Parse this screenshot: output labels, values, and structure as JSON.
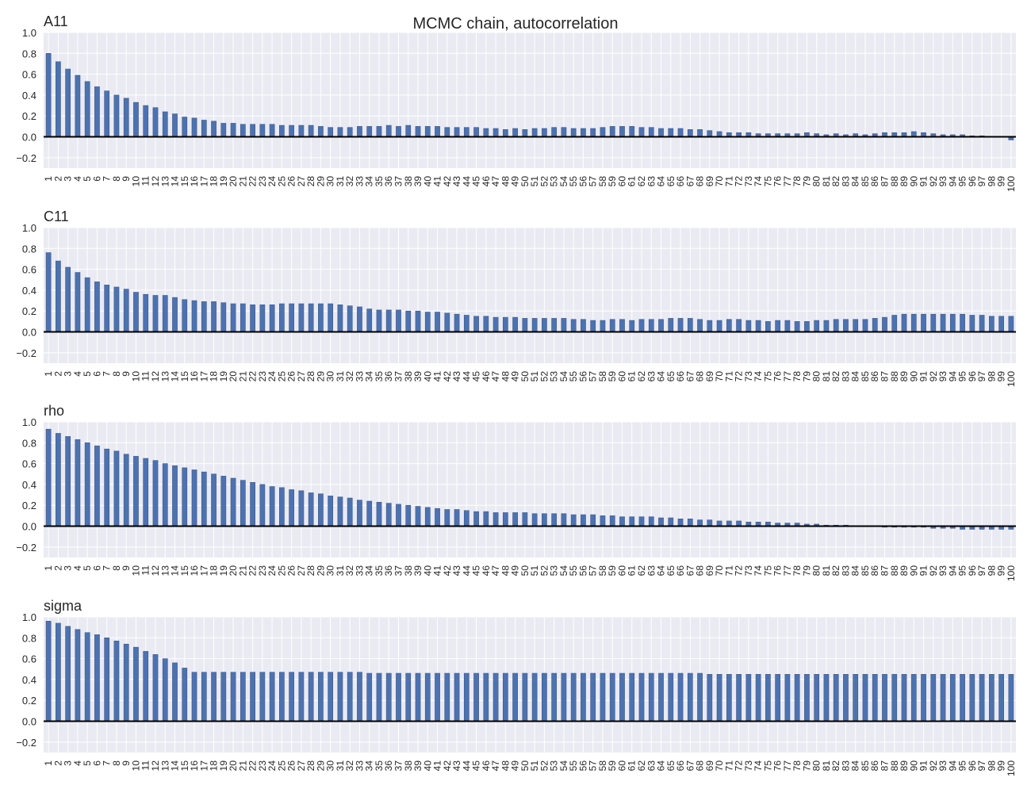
{
  "title": "MCMC chain, autocorrelation",
  "colors": {
    "bar": "#4c72b0",
    "plot_bg": "#eaeaf2",
    "grid": "#ffffff",
    "zero_line": "#000000",
    "text": "#262626"
  },
  "chart_data": [
    {
      "type": "bar",
      "title": "A11",
      "ylim": [
        -0.3,
        1.0
      ],
      "yticks": [
        -0.2,
        0.0,
        0.2,
        0.4,
        0.6,
        0.8,
        1.0
      ],
      "ytick_labels": [
        "−0.2",
        "0.0",
        "0.2",
        "0.4",
        "0.6",
        "0.8",
        "1.0"
      ],
      "grid": true,
      "categories": [
        "1",
        "2",
        "3",
        "4",
        "5",
        "6",
        "7",
        "8",
        "9",
        "10",
        "11",
        "12",
        "13",
        "14",
        "15",
        "16",
        "17",
        "18",
        "19",
        "20",
        "21",
        "22",
        "23",
        "24",
        "25",
        "26",
        "27",
        "28",
        "29",
        "30",
        "31",
        "32",
        "33",
        "34",
        "35",
        "36",
        "37",
        "38",
        "39",
        "40",
        "41",
        "42",
        "43",
        "44",
        "45",
        "46",
        "47",
        "48",
        "49",
        "50",
        "51",
        "52",
        "53",
        "54",
        "55",
        "56",
        "57",
        "58",
        "59",
        "60",
        "61",
        "62",
        "63",
        "64",
        "65",
        "66",
        "67",
        "68",
        "69",
        "70",
        "71",
        "72",
        "73",
        "74",
        "75",
        "76",
        "77",
        "78",
        "79",
        "80",
        "81",
        "82",
        "83",
        "84",
        "85",
        "86",
        "87",
        "88",
        "89",
        "90",
        "91",
        "92",
        "93",
        "94",
        "95",
        "96",
        "97",
        "98",
        "99",
        "100"
      ],
      "values": [
        0.8,
        0.72,
        0.65,
        0.59,
        0.53,
        0.48,
        0.44,
        0.4,
        0.37,
        0.33,
        0.3,
        0.28,
        0.24,
        0.22,
        0.19,
        0.18,
        0.16,
        0.15,
        0.13,
        0.13,
        0.12,
        0.12,
        0.12,
        0.12,
        0.11,
        0.11,
        0.11,
        0.11,
        0.1,
        0.09,
        0.09,
        0.09,
        0.1,
        0.1,
        0.1,
        0.11,
        0.1,
        0.11,
        0.1,
        0.1,
        0.1,
        0.09,
        0.09,
        0.09,
        0.09,
        0.08,
        0.08,
        0.07,
        0.08,
        0.07,
        0.08,
        0.08,
        0.09,
        0.09,
        0.08,
        0.08,
        0.08,
        0.09,
        0.1,
        0.1,
        0.1,
        0.09,
        0.09,
        0.08,
        0.08,
        0.08,
        0.07,
        0.07,
        0.06,
        0.05,
        0.04,
        0.04,
        0.04,
        0.03,
        0.03,
        0.03,
        0.03,
        0.03,
        0.04,
        0.03,
        0.02,
        0.03,
        0.02,
        0.03,
        0.02,
        0.03,
        0.04,
        0.04,
        0.04,
        0.05,
        0.04,
        0.03,
        0.02,
        0.02,
        0.02,
        0.01,
        0.01,
        0.0,
        0.0,
        -0.03
      ]
    },
    {
      "type": "bar",
      "title": "C11",
      "ylim": [
        -0.3,
        1.0
      ],
      "yticks": [
        -0.2,
        0.0,
        0.2,
        0.4,
        0.6,
        0.8,
        1.0
      ],
      "ytick_labels": [
        "−0.2",
        "0.0",
        "0.2",
        "0.4",
        "0.6",
        "0.8",
        "1.0"
      ],
      "grid": true,
      "categories": [
        "1",
        "2",
        "3",
        "4",
        "5",
        "6",
        "7",
        "8",
        "9",
        "10",
        "11",
        "12",
        "13",
        "14",
        "15",
        "16",
        "17",
        "18",
        "19",
        "20",
        "21",
        "22",
        "23",
        "24",
        "25",
        "26",
        "27",
        "28",
        "29",
        "30",
        "31",
        "32",
        "33",
        "34",
        "35",
        "36",
        "37",
        "38",
        "39",
        "40",
        "41",
        "42",
        "43",
        "44",
        "45",
        "46",
        "47",
        "48",
        "49",
        "50",
        "51",
        "52",
        "53",
        "54",
        "55",
        "56",
        "57",
        "58",
        "59",
        "60",
        "61",
        "62",
        "63",
        "64",
        "65",
        "66",
        "67",
        "68",
        "69",
        "70",
        "71",
        "72",
        "73",
        "74",
        "75",
        "76",
        "77",
        "78",
        "79",
        "80",
        "81",
        "82",
        "83",
        "84",
        "85",
        "86",
        "87",
        "88",
        "89",
        "90",
        "91",
        "92",
        "93",
        "94",
        "95",
        "96",
        "97",
        "98",
        "99",
        "100"
      ],
      "values": [
        0.76,
        0.68,
        0.62,
        0.57,
        0.52,
        0.48,
        0.45,
        0.43,
        0.41,
        0.38,
        0.36,
        0.35,
        0.35,
        0.33,
        0.31,
        0.3,
        0.29,
        0.29,
        0.28,
        0.27,
        0.27,
        0.26,
        0.26,
        0.26,
        0.27,
        0.27,
        0.27,
        0.27,
        0.27,
        0.27,
        0.26,
        0.25,
        0.24,
        0.22,
        0.21,
        0.21,
        0.21,
        0.2,
        0.2,
        0.19,
        0.19,
        0.18,
        0.17,
        0.16,
        0.15,
        0.15,
        0.14,
        0.14,
        0.14,
        0.13,
        0.13,
        0.13,
        0.13,
        0.13,
        0.12,
        0.12,
        0.11,
        0.11,
        0.12,
        0.12,
        0.11,
        0.12,
        0.12,
        0.12,
        0.13,
        0.13,
        0.13,
        0.12,
        0.11,
        0.11,
        0.12,
        0.12,
        0.11,
        0.11,
        0.1,
        0.11,
        0.11,
        0.1,
        0.1,
        0.11,
        0.11,
        0.12,
        0.12,
        0.12,
        0.12,
        0.13,
        0.14,
        0.16,
        0.17,
        0.17,
        0.17,
        0.17,
        0.17,
        0.17,
        0.17,
        0.16,
        0.16,
        0.15,
        0.15,
        0.15
      ]
    },
    {
      "type": "bar",
      "title": "rho",
      "ylim": [
        -0.3,
        1.0
      ],
      "yticks": [
        -0.2,
        0.0,
        0.2,
        0.4,
        0.6,
        0.8,
        1.0
      ],
      "ytick_labels": [
        "−0.2",
        "0.0",
        "0.2",
        "0.4",
        "0.6",
        "0.8",
        "1.0"
      ],
      "grid": true,
      "categories": [
        "1",
        "2",
        "3",
        "4",
        "5",
        "6",
        "7",
        "8",
        "9",
        "10",
        "11",
        "12",
        "13",
        "14",
        "15",
        "16",
        "17",
        "18",
        "19",
        "20",
        "21",
        "22",
        "23",
        "24",
        "25",
        "26",
        "27",
        "28",
        "29",
        "30",
        "31",
        "32",
        "33",
        "34",
        "35",
        "36",
        "37",
        "38",
        "39",
        "40",
        "41",
        "42",
        "43",
        "44",
        "45",
        "46",
        "47",
        "48",
        "49",
        "50",
        "51",
        "52",
        "53",
        "54",
        "55",
        "56",
        "57",
        "58",
        "59",
        "60",
        "61",
        "62",
        "63",
        "64",
        "65",
        "66",
        "67",
        "68",
        "69",
        "70",
        "71",
        "72",
        "73",
        "74",
        "75",
        "76",
        "77",
        "78",
        "79",
        "80",
        "81",
        "82",
        "83",
        "84",
        "85",
        "86",
        "87",
        "88",
        "89",
        "90",
        "91",
        "92",
        "93",
        "94",
        "95",
        "96",
        "97",
        "98",
        "99",
        "100"
      ],
      "values": [
        0.93,
        0.89,
        0.86,
        0.83,
        0.8,
        0.77,
        0.74,
        0.72,
        0.69,
        0.67,
        0.65,
        0.63,
        0.6,
        0.58,
        0.56,
        0.54,
        0.52,
        0.5,
        0.48,
        0.46,
        0.44,
        0.42,
        0.4,
        0.38,
        0.37,
        0.35,
        0.34,
        0.32,
        0.31,
        0.29,
        0.28,
        0.27,
        0.25,
        0.24,
        0.23,
        0.22,
        0.21,
        0.2,
        0.19,
        0.18,
        0.17,
        0.16,
        0.16,
        0.15,
        0.14,
        0.14,
        0.13,
        0.13,
        0.13,
        0.13,
        0.12,
        0.12,
        0.12,
        0.12,
        0.11,
        0.11,
        0.11,
        0.1,
        0.1,
        0.09,
        0.09,
        0.09,
        0.09,
        0.08,
        0.08,
        0.07,
        0.07,
        0.06,
        0.06,
        0.05,
        0.05,
        0.05,
        0.04,
        0.04,
        0.04,
        0.03,
        0.03,
        0.03,
        0.02,
        0.02,
        0.01,
        0.01,
        0.01,
        0.0,
        0.0,
        0.0,
        -0.01,
        -0.01,
        -0.01,
        -0.01,
        -0.01,
        -0.02,
        -0.02,
        -0.02,
        -0.03,
        -0.03,
        -0.03,
        -0.03,
        -0.03,
        -0.03
      ]
    },
    {
      "type": "bar",
      "title": "sigma",
      "ylim": [
        -0.3,
        1.0
      ],
      "yticks": [
        -0.2,
        0.0,
        0.2,
        0.4,
        0.6,
        0.8,
        1.0
      ],
      "ytick_labels": [
        "−0.2",
        "0.0",
        "0.2",
        "0.4",
        "0.6",
        "0.8",
        "1.0"
      ],
      "grid": true,
      "categories": [
        "1",
        "2",
        "3",
        "4",
        "5",
        "6",
        "7",
        "8",
        "9",
        "10",
        "11",
        "12",
        "13",
        "14",
        "15",
        "16",
        "17",
        "18",
        "19",
        "20",
        "21",
        "22",
        "23",
        "24",
        "25",
        "26",
        "27",
        "28",
        "29",
        "30",
        "31",
        "32",
        "33",
        "34",
        "35",
        "36",
        "37",
        "38",
        "39",
        "40",
        "41",
        "42",
        "43",
        "44",
        "45",
        "46",
        "47",
        "48",
        "49",
        "50",
        "51",
        "52",
        "53",
        "54",
        "55",
        "56",
        "57",
        "58",
        "59",
        "60",
        "61",
        "62",
        "63",
        "64",
        "65",
        "66",
        "67",
        "68",
        "69",
        "70",
        "71",
        "72",
        "73",
        "74",
        "75",
        "76",
        "77",
        "78",
        "79",
        "80",
        "81",
        "82",
        "83",
        "84",
        "85",
        "86",
        "87",
        "88",
        "89",
        "90",
        "91",
        "92",
        "93",
        "94",
        "95",
        "96",
        "97",
        "98",
        "99",
        "100"
      ],
      "values": [
        0.96,
        0.94,
        0.91,
        0.88,
        0.85,
        0.83,
        0.8,
        0.77,
        0.74,
        0.71,
        0.67,
        0.64,
        0.6,
        0.56,
        0.51,
        0.47,
        0.47,
        0.47,
        0.47,
        0.47,
        0.47,
        0.47,
        0.47,
        0.47,
        0.47,
        0.47,
        0.47,
        0.47,
        0.47,
        0.47,
        0.47,
        0.47,
        0.47,
        0.46,
        0.46,
        0.46,
        0.46,
        0.46,
        0.46,
        0.46,
        0.46,
        0.46,
        0.46,
        0.46,
        0.46,
        0.46,
        0.46,
        0.46,
        0.46,
        0.46,
        0.46,
        0.46,
        0.46,
        0.46,
        0.46,
        0.46,
        0.46,
        0.46,
        0.46,
        0.46,
        0.46,
        0.46,
        0.46,
        0.46,
        0.46,
        0.46,
        0.46,
        0.46,
        0.45,
        0.45,
        0.45,
        0.45,
        0.45,
        0.45,
        0.45,
        0.45,
        0.45,
        0.45,
        0.45,
        0.45,
        0.45,
        0.45,
        0.45,
        0.45,
        0.45,
        0.45,
        0.45,
        0.45,
        0.45,
        0.45,
        0.45,
        0.45,
        0.45,
        0.45,
        0.45,
        0.45,
        0.45,
        0.45,
        0.45,
        0.45
      ]
    }
  ]
}
